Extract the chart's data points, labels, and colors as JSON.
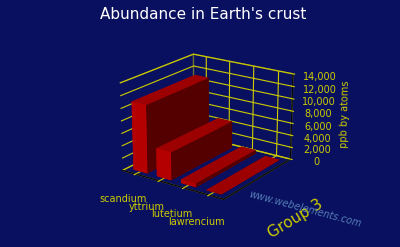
{
  "title": "Abundance in Earth's crust",
  "ylabel": "ppb by atoms",
  "xlabel": "Group 3",
  "watermark": "www.webelements.com",
  "categories": [
    "scandium",
    "yttrium",
    "lutetium",
    "lawrencium"
  ],
  "values": [
    11000,
    4500,
    600,
    10
  ],
  "bar_color": "#cc0000",
  "background_color": "#0a1060",
  "grid_color": "#cccc00",
  "title_color": "#ffffff",
  "label_color": "#cccc00",
  "ylabel_color": "#cccc00",
  "watermark_color": "#6699cc",
  "ylim": [
    0,
    14000
  ],
  "yticks": [
    0,
    2000,
    4000,
    6000,
    8000,
    10000,
    12000,
    14000
  ],
  "title_fontsize": 11,
  "label_fontsize": 8,
  "xlabel_fontsize": 11
}
